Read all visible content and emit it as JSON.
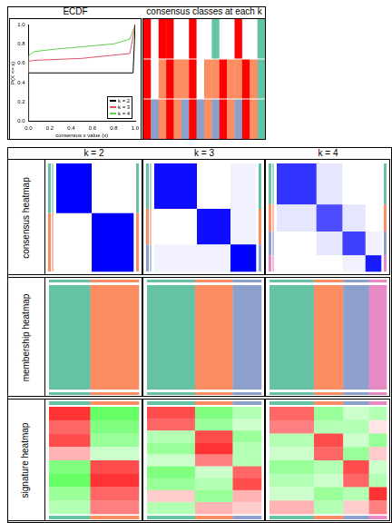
{
  "chart_data": {
    "type": "line",
    "title": "ECDF",
    "x_label": "consensus x value (x)",
    "y_label": "P(X <= x)",
    "xlim": [
      0,
      1
    ],
    "ylim": [
      0,
      1
    ],
    "xticks": [
      {
        "value": 0,
        "label": "0.0"
      },
      {
        "value": 0.2,
        "label": "0.2"
      },
      {
        "value": 0.4,
        "label": "0.4"
      },
      {
        "value": 0.6,
        "label": "0.6"
      },
      {
        "value": 0.8,
        "label": "0.8"
      },
      {
        "value": 1,
        "label": "1.0"
      }
    ],
    "yticks": [
      {
        "value": 0,
        "label": "0.0"
      },
      {
        "value": 0.2,
        "label": "0.2"
      },
      {
        "value": 0.4,
        "label": "0.4"
      },
      {
        "value": 0.6,
        "label": "0.6"
      },
      {
        "value": 0.8,
        "label": "0.8"
      },
      {
        "value": 1,
        "label": "1.0"
      }
    ],
    "grid": false,
    "legend": "lower right",
    "series": [
      {
        "name": "k = 2",
        "color": "#000000",
        "x": [
          0,
          0,
          0.02,
          0.98,
          1
        ],
        "values": [
          0,
          0.5,
          0.5,
          0.5,
          1
        ]
      },
      {
        "name": "k = 3",
        "color": "#DF536B",
        "x": [
          0,
          0,
          0.05,
          0.5,
          0.95,
          1
        ],
        "values": [
          0,
          0.62,
          0.63,
          0.65,
          0.7,
          1
        ]
      },
      {
        "name": "k = 4",
        "color": "#61D04F",
        "x": [
          0,
          0,
          0.05,
          0.2,
          0.4,
          0.6,
          0.8,
          0.95,
          1
        ],
        "values": [
          0,
          0.68,
          0.72,
          0.74,
          0.76,
          0.78,
          0.8,
          0.85,
          1
        ]
      }
    ]
  },
  "consensus_classes": {
    "title": "consensus classes at each k",
    "k": [
      2,
      3,
      4
    ],
    "colors": [
      "#FF0000",
      "#FFFFFF",
      "#66C2A5",
      "#FC8D62",
      "#8DA0CB"
    ],
    "classes": [
      [
        1,
        2,
        1,
        1,
        2,
        2,
        1,
        2,
        2,
        3,
        2,
        2,
        1,
        2,
        2,
        3
      ],
      [
        1,
        2,
        4,
        1,
        4,
        4,
        1,
        2,
        4,
        4,
        1,
        4,
        4,
        1,
        4,
        3
      ],
      [
        1,
        5,
        4,
        1,
        4,
        5,
        1,
        5,
        4,
        5,
        1,
        4,
        5,
        1,
        4,
        3
      ]
    ]
  },
  "grid_panels": {
    "row_titles": [
      "consensus heatmap",
      "membership heatmap",
      "signature heatmap"
    ],
    "column_titles": [
      "k = 2",
      "k = 3",
      "k = 4"
    ],
    "class_colors": [
      "#66C2A5",
      "#FC8D62",
      "#8DA0CB",
      "#E78AC3"
    ],
    "consensus_colors": [
      "#FFFFFF",
      "#0000FF"
    ],
    "consensus_range": [
      0,
      1
    ],
    "signature_colors": [
      "#00FF00",
      "#FFFFFF",
      "#FF0000"
    ],
    "signature_range": [
      -1,
      1
    ],
    "panels": [
      {
        "class_sizes": [
          46,
          54
        ],
        "consensus": [
          [
            1,
            0
          ],
          [
            0,
            1
          ]
        ],
        "signature": [
          [
            0.8,
            -0.6
          ],
          [
            0.6,
            -0.5
          ],
          [
            0.7,
            -0.4
          ],
          [
            0.3,
            -0.2
          ],
          [
            -0.5,
            0.7
          ],
          [
            -0.6,
            0.8
          ],
          [
            -0.4,
            0.6
          ],
          [
            -0.3,
            0.5
          ]
        ]
      },
      {
        "class_sizes": [
          42,
          33,
          25
        ],
        "consensus": [
          [
            0.95,
            0,
            0.05
          ],
          [
            0,
            0.95,
            0.05
          ],
          [
            0.05,
            0.05,
            1
          ]
        ],
        "signature": [
          [
            0.7,
            -0.5,
            -0.3
          ],
          [
            0.6,
            -0.4,
            -0.2
          ],
          [
            -0.3,
            0.7,
            -0.4
          ],
          [
            -0.4,
            0.8,
            -0.3
          ],
          [
            -0.2,
            0.5,
            -0.3
          ],
          [
            -0.5,
            -0.2,
            0.6
          ],
          [
            -0.4,
            -0.3,
            0.7
          ],
          [
            0.2,
            -0.4,
            0.3
          ],
          [
            -0.3,
            0.3,
            0.2
          ]
        ]
      },
      {
        "class_sizes": [
          38,
          25,
          22,
          15
        ],
        "consensus": [
          [
            0.8,
            0.1,
            0,
            0
          ],
          [
            0.1,
            0.7,
            0.1,
            0
          ],
          [
            0,
            0.1,
            0.75,
            0.05
          ],
          [
            0,
            0,
            0.05,
            0.9
          ]
        ],
        "signature": [
          [
            0.6,
            -0.4,
            -0.2,
            -0.3
          ],
          [
            0.5,
            -0.3,
            -0.3,
            0.1
          ],
          [
            -0.3,
            0.7,
            -0.2,
            -0.4
          ],
          [
            -0.2,
            0.6,
            -0.4,
            0.2
          ],
          [
            -0.4,
            -0.3,
            0.7,
            -0.2
          ],
          [
            -0.3,
            -0.2,
            0.6,
            -0.3
          ],
          [
            -0.2,
            -0.4,
            -0.3,
            0.8
          ],
          [
            0.3,
            -0.3,
            0.2,
            0.5
          ]
        ]
      }
    ]
  }
}
